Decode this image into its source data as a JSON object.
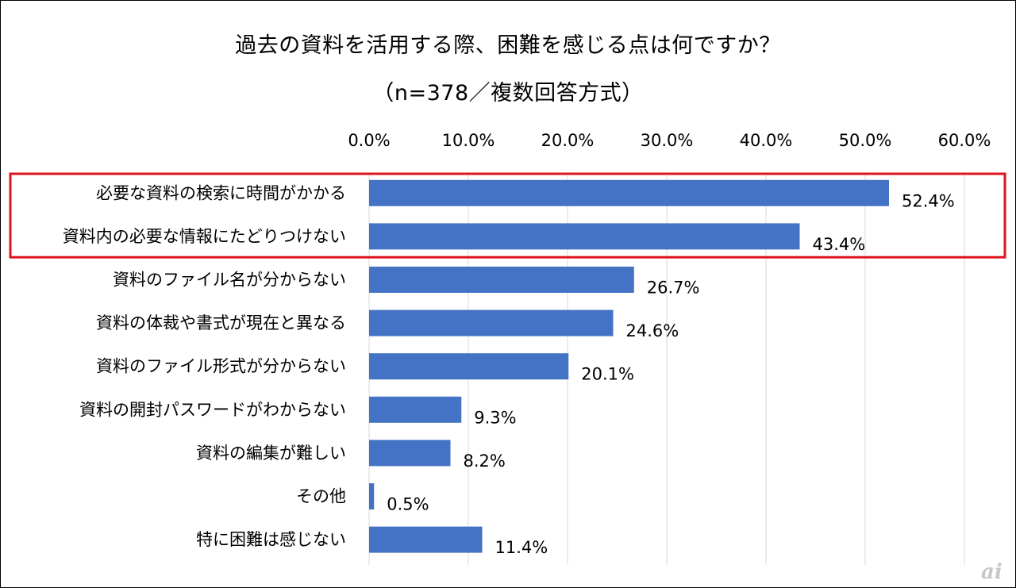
{
  "chart_data": {
    "type": "bar",
    "orientation": "horizontal",
    "title": "過去の資料を活用する際、困難を感じる点は何ですか？",
    "subtitle": "（n=378／複数回答方式）",
    "categories": [
      "必要な資料の検索に時間がかかる",
      "資料内の必要な情報にたどりつけない",
      "資料のファイル名が分からない",
      "資料の体裁や書式が現在と異なる",
      "資料のファイル形式が分からない",
      "資料の開封パスワードがわからない",
      "資料の編集が難しい",
      "その他",
      "特に困難は感じない"
    ],
    "values": [
      52.4,
      43.4,
      26.7,
      24.6,
      20.1,
      9.3,
      8.2,
      0.5,
      11.4
    ],
    "value_labels": [
      "52.4%",
      "43.4%",
      "26.7%",
      "24.6%",
      "20.1%",
      "9.3%",
      "8.2%",
      "0.5%",
      "11.4%"
    ],
    "xlim": [
      0,
      60
    ],
    "x_ticks": [
      0,
      10,
      20,
      30,
      40,
      50,
      60
    ],
    "x_tick_labels": [
      "0.0%",
      "10.0%",
      "20.0%",
      "30.0%",
      "40.0%",
      "50.0%",
      "60.0%"
    ],
    "axis_position": "top",
    "grid": true,
    "highlight_categories": [
      0,
      1
    ],
    "colors": {
      "bar": "#4472c4",
      "gridline": "#d9d9d9",
      "highlight_box": "#e0141e",
      "text": "#000000"
    }
  },
  "watermark": "ai"
}
